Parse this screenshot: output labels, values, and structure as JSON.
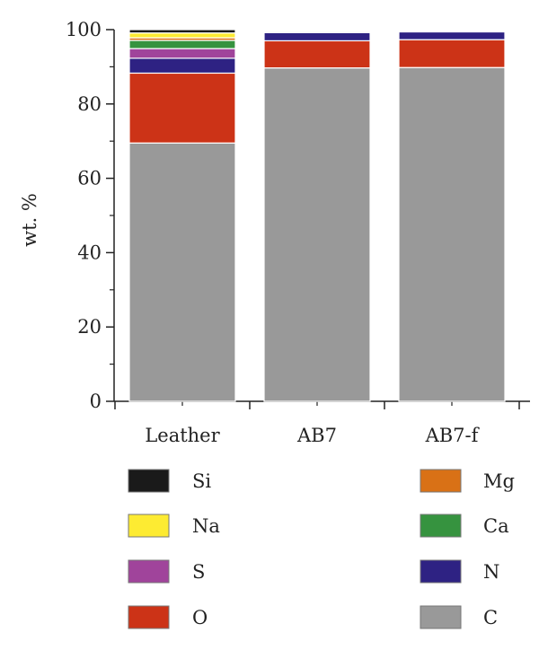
{
  "chart_data": {
    "type": "bar",
    "stacked": true,
    "ylabel": "wt. %",
    "xlabel": "",
    "ylim": [
      0,
      100
    ],
    "yticks": [
      0,
      20,
      40,
      60,
      80,
      100
    ],
    "categories": [
      "Leather",
      "AB7",
      "AB7-f"
    ],
    "series": [
      {
        "name": "C",
        "color": "#999999",
        "values": [
          69.5,
          89.7,
          89.8
        ]
      },
      {
        "name": "O",
        "color": "#CC3317",
        "values": [
          18.8,
          7.3,
          7.5
        ]
      },
      {
        "name": "N",
        "color": "#2E2283",
        "values": [
          4.0,
          2.2,
          2.1
        ]
      },
      {
        "name": "S",
        "color": "#A0449B",
        "values": [
          2.6,
          0.3,
          0.1
        ]
      },
      {
        "name": "Ca",
        "color": "#36933F",
        "values": [
          2.2,
          0.1,
          0.1
        ]
      },
      {
        "name": "Mg",
        "color": "#D97116",
        "values": [
          0.7,
          0.1,
          0.1
        ]
      },
      {
        "name": "Na",
        "color": "#FDEB32",
        "values": [
          1.3,
          0.1,
          0.1
        ]
      },
      {
        "name": "Si",
        "color": "#1A1A1A",
        "values": [
          0.9,
          0.2,
          0.2
        ]
      }
    ],
    "legend": {
      "placement": "bottom",
      "left_column": [
        "Si",
        "Na",
        "S",
        "O"
      ],
      "right_column": [
        "Mg",
        "Ca",
        "N",
        "C"
      ]
    },
    "grid": false
  }
}
